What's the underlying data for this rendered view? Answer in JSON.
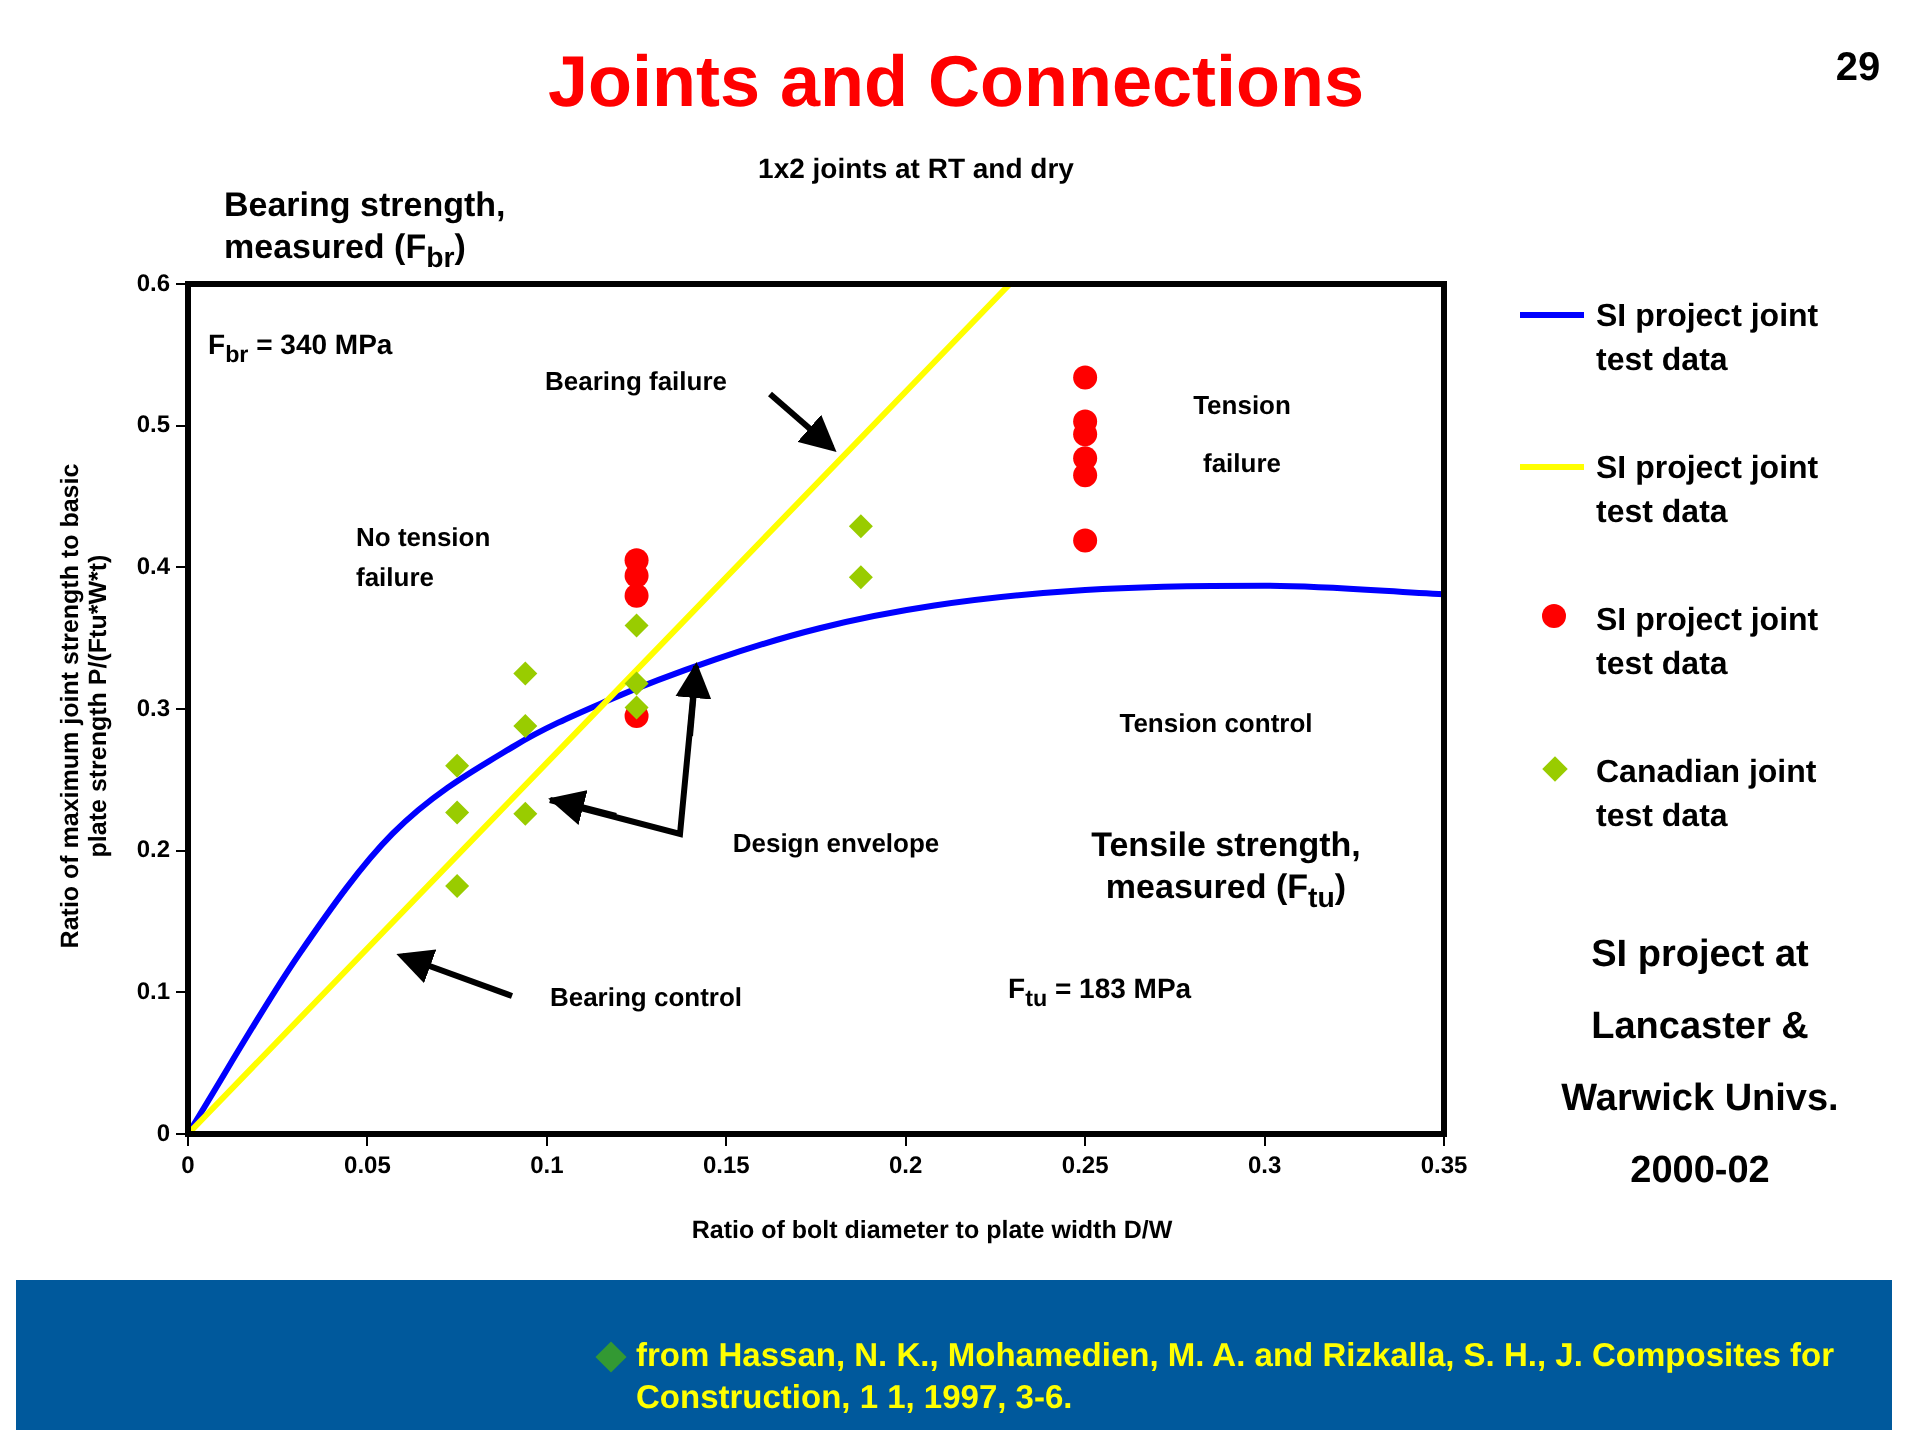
{
  "chart_data": {
    "type": "scatter",
    "title": "Joints and Connections",
    "subtitle": "1x2 joints at RT and dry",
    "xlabel": "Ratio of bolt diameter to plate width D/W",
    "ylabel": "Ratio of maximum joint strength to basic plate strength P/(Ftu*W*t)",
    "xlim": [
      0,
      0.35
    ],
    "xticks": [
      0,
      0.05,
      0.1,
      0.15,
      0.2,
      0.25,
      0.3,
      0.35
    ],
    "ylim": [
      0,
      0.6
    ],
    "yticks": [
      0,
      0.1,
      0.2,
      0.3,
      0.4,
      0.5,
      0.6
    ],
    "grid": false,
    "legend": "right",
    "series": [
      {
        "name": "SI project joint test data",
        "type": "line",
        "color": "#0000ff",
        "marker": "none",
        "x": [
          0,
          0.031,
          0.057,
          0.091,
          0.117,
          0.147,
          0.176,
          0.208,
          0.25,
          0.3,
          0.35
        ],
        "values": [
          0,
          0.127,
          0.212,
          0.274,
          0.306,
          0.335,
          0.357,
          0.373,
          0.384,
          0.387,
          0.381
        ]
      },
      {
        "name": "SI project joint test data",
        "type": "line",
        "color": "#ffff00",
        "marker": "none",
        "x": [
          0,
          0.229
        ],
        "values": [
          0,
          0.6
        ]
      },
      {
        "name": "SI project joint test data",
        "color": "#ff0000",
        "marker": "circle",
        "x": [
          0.125,
          0.125,
          0.125,
          0.125,
          0.25,
          0.25,
          0.25,
          0.25,
          0.25,
          0.25
        ],
        "values": [
          0.405,
          0.394,
          0.38,
          0.295,
          0.534,
          0.503,
          0.494,
          0.477,
          0.465,
          0.419
        ]
      },
      {
        "name": "Canadian joint test data",
        "color": "#99cc00",
        "marker": "diamond",
        "x": [
          0.075,
          0.075,
          0.075,
          0.094,
          0.094,
          0.094,
          0.125,
          0.125,
          0.125,
          0.1875,
          0.1875
        ],
        "values": [
          0.26,
          0.227,
          0.175,
          0.325,
          0.288,
          0.226,
          0.359,
          0.318,
          0.301,
          0.429,
          0.393
        ]
      }
    ],
    "annotations": [
      "29",
      "Bearing strength, measured (F$_{br}$)",
      "F$_{br}$ = 340 MPa",
      "Tensile strength, measured (F$_{tu}$)",
      "F$_{tu}$ = 183 MPa",
      "SI project at Lancaster & Warwick Univs. 2000-02",
      "from Hassan, N. K., Mohamedien, M. A. and Rizkalla, S. H., J. Composites for Construction, 1 1, 1997, 3-6.",
      "Bearing failure",
      "No tension failure",
      "Tension failure",
      "Tension control",
      "Design envelope",
      "Bearing control"
    ]
  }
}
